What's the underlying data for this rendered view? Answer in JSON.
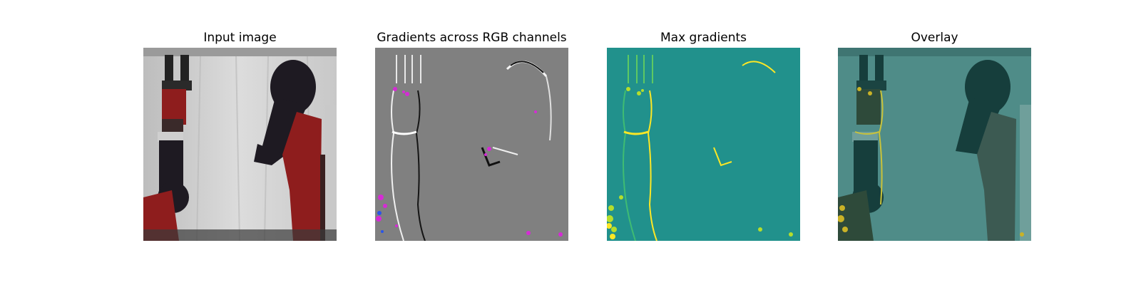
{
  "figure": {
    "panels": [
      {
        "id": "input",
        "title": "Input image"
      },
      {
        "id": "gradients",
        "title": "Gradients across RGB channels"
      },
      {
        "id": "max",
        "title": "Max gradients"
      },
      {
        "id": "overlay",
        "title": "Overlay"
      }
    ],
    "colors": {
      "background_wall": "#d0d0d0",
      "robot_dark": "#1e1a22",
      "robot_red": "#8e1d1d",
      "gradient_gray": "#808080",
      "viridis_teal": "#21918c",
      "viridis_yellow": "#fde725",
      "overlay_teal": "#4f8c88"
    }
  }
}
